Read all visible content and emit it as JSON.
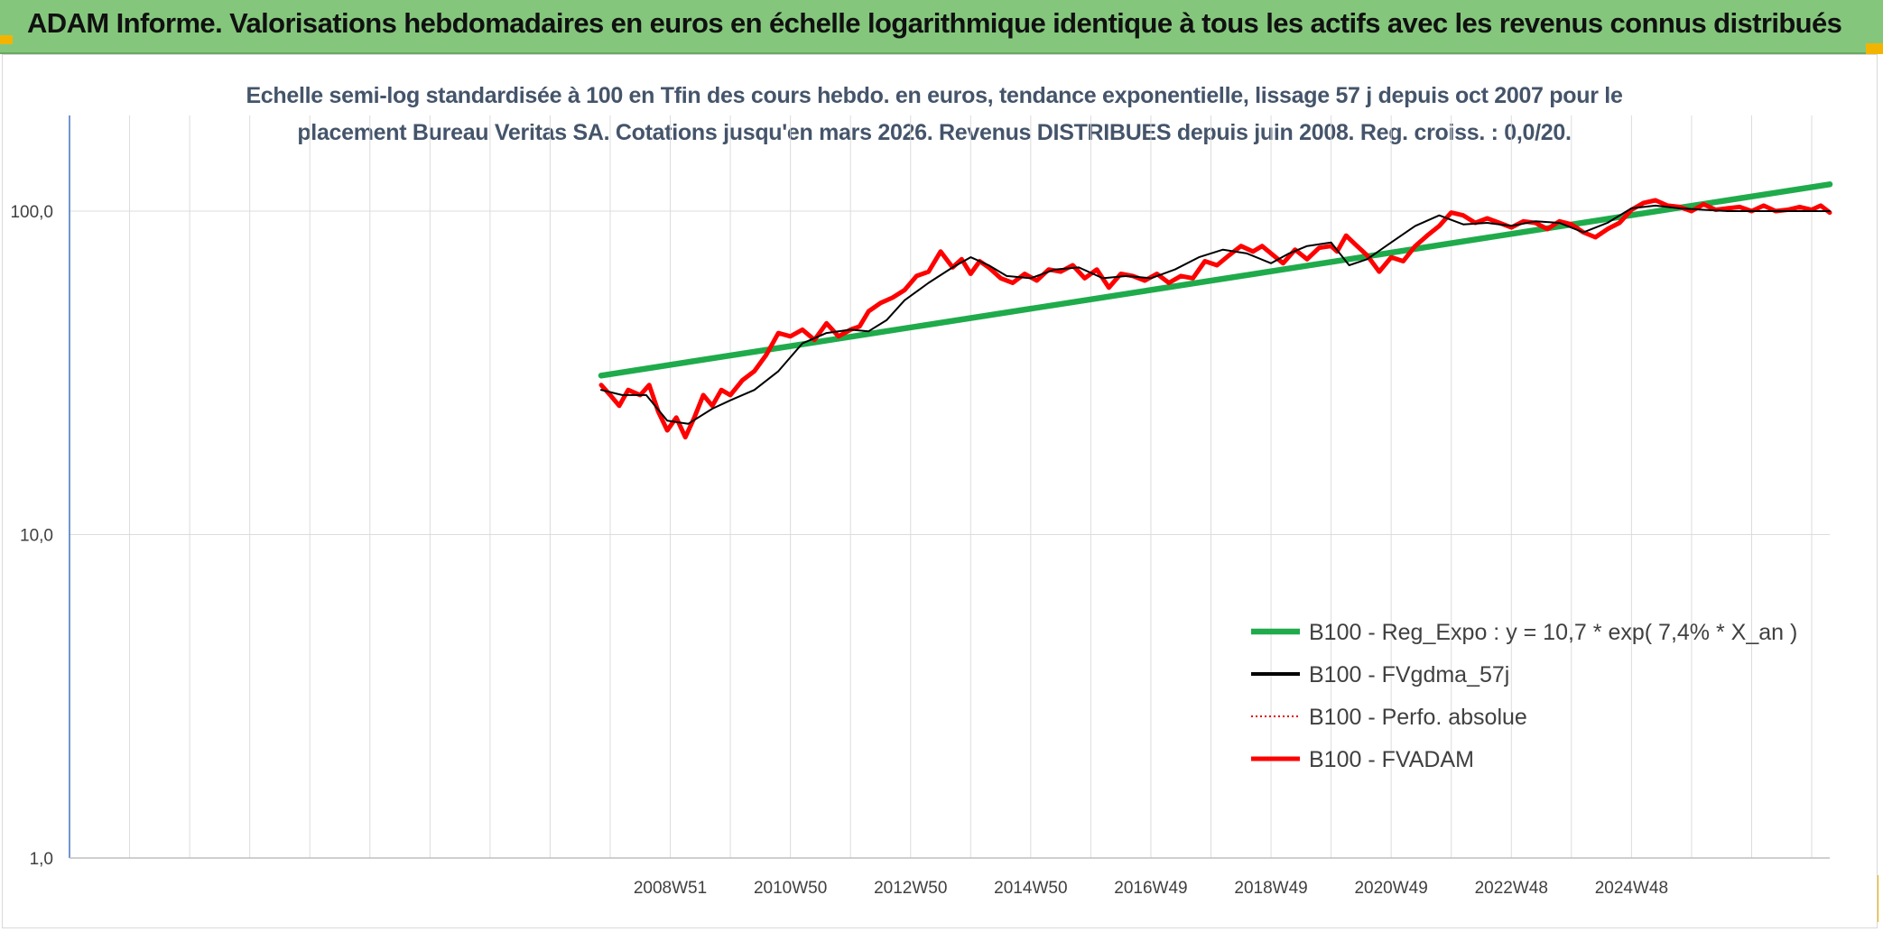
{
  "header": {
    "title": "ADAM Informe. Valorisations hebdomadaires en euros en échelle logarithmique identique à tous les actifs avec les revenus connus distribués"
  },
  "colors": {
    "header_bg": "#84c77c",
    "corner": "#f2b400",
    "reg_expo": "#1fab4b",
    "fvgdma": "#000000",
    "perfo": "#e00000",
    "fvadam": "#ff0000"
  },
  "chart_data": {
    "type": "line",
    "title_lines": [
      "Echelle semi-log standardisée à 100 en Tfin des cours hebdo. en euros, tendance exponentielle, lissage 57 j depuis oct 2007 pour le",
      "placement Bureau Veritas SA. Cotations jusqu'en mars 2026. Revenus DISTRIBUES depuis juin 2008. Reg. croiss. : 0,0/20."
    ],
    "y_scale": "log",
    "ylim": [
      1,
      200
    ],
    "y_ticks": [
      {
        "value": 1,
        "label": "1,0"
      },
      {
        "value": 10,
        "label": "10,0"
      },
      {
        "value": 100,
        "label": "100,0"
      }
    ],
    "x_range": [
      1999.0,
      2028.3
    ],
    "x_gridlines": [
      2000.0,
      2001.0,
      2002.0,
      2003.0,
      2004.0,
      2005.0,
      2006.0,
      2007.0,
      2008.0,
      2009.0,
      2010.0,
      2011.0,
      2012.0,
      2013.0,
      2014.0,
      2015.0,
      2016.0,
      2017.0,
      2018.0,
      2019.0,
      2020.0,
      2021.0,
      2022.0,
      2023.0,
      2024.0,
      2025.0,
      2026.0,
      2027.0,
      2028.0
    ],
    "x_ticks": [
      {
        "value": 2009.0,
        "label": "2008W51"
      },
      {
        "value": 2011.0,
        "label": "2010W50"
      },
      {
        "value": 2013.0,
        "label": "2012W50"
      },
      {
        "value": 2015.0,
        "label": "2014W50"
      },
      {
        "value": 2017.0,
        "label": "2016W49"
      },
      {
        "value": 2019.0,
        "label": "2018W49"
      },
      {
        "value": 2021.0,
        "label": "2020W49"
      },
      {
        "value": 2023.0,
        "label": "2022W48"
      },
      {
        "value": 2025.0,
        "label": "2024W48"
      }
    ],
    "legend_position": "bottom-right",
    "series": [
      {
        "name": "B100 - Reg_Expo : y = 10,7 * exp( 7,4% *  X_an )",
        "style": "thick-solid",
        "x": [
          2007.85,
          2028.3
        ],
        "y": [
          31,
          121
        ]
      },
      {
        "name": "B100 - FVgdma_57j",
        "style": "thin-solid",
        "x": [
          2007.85,
          2008.2,
          2008.6,
          2008.95,
          2009.3,
          2009.7,
          2010.0,
          2010.4,
          2010.8,
          2011.2,
          2011.6,
          2012.0,
          2012.3,
          2012.6,
          2012.9,
          2013.3,
          2013.7,
          2014.0,
          2014.3,
          2014.6,
          2015.0,
          2015.4,
          2015.8,
          2016.2,
          2016.6,
          2017.0,
          2017.4,
          2017.8,
          2018.2,
          2018.6,
          2019.0,
          2019.3,
          2019.6,
          2020.0,
          2020.3,
          2020.6,
          2021.0,
          2021.4,
          2021.8,
          2022.2,
          2022.6,
          2023.0,
          2023.4,
          2023.8,
          2024.2,
          2024.6,
          2025.0,
          2025.4,
          2025.8,
          2026.2,
          2026.6,
          2027.0,
          2027.4,
          2027.8,
          2028.3
        ],
        "y": [
          28,
          27,
          27,
          22.5,
          22,
          24.5,
          26,
          28,
          32,
          39,
          42,
          43,
          42.5,
          46,
          53,
          60,
          67,
          72,
          68,
          63,
          62,
          66,
          67,
          62,
          63,
          62,
          66,
          72,
          76,
          74,
          69,
          74,
          78,
          80,
          68,
          71,
          80,
          90,
          97,
          91,
          92,
          90,
          93,
          92,
          86,
          92,
          102,
          104,
          102,
          101,
          100,
          100,
          100,
          100,
          100
        ]
      },
      {
        "name": "B100 - Perfo. absolue",
        "style": "dotted",
        "x": [],
        "y": []
      },
      {
        "name": "B100 - FVADAM",
        "style": "thick-solid",
        "x": [
          2007.85,
          2008.0,
          2008.15,
          2008.3,
          2008.5,
          2008.65,
          2008.8,
          2008.95,
          2009.1,
          2009.25,
          2009.4,
          2009.55,
          2009.7,
          2009.85,
          2010.0,
          2010.2,
          2010.4,
          2010.6,
          2010.8,
          2011.0,
          2011.2,
          2011.4,
          2011.6,
          2011.8,
          2012.0,
          2012.15,
          2012.3,
          2012.5,
          2012.7,
          2012.9,
          2013.1,
          2013.3,
          2013.5,
          2013.7,
          2013.85,
          2014.0,
          2014.15,
          2014.3,
          2014.5,
          2014.7,
          2014.9,
          2015.1,
          2015.3,
          2015.5,
          2015.7,
          2015.9,
          2016.1,
          2016.3,
          2016.5,
          2016.7,
          2016.9,
          2017.1,
          2017.3,
          2017.5,
          2017.7,
          2017.9,
          2018.1,
          2018.3,
          2018.5,
          2018.7,
          2018.85,
          2019.0,
          2019.2,
          2019.4,
          2019.6,
          2019.8,
          2020.0,
          2020.1,
          2020.25,
          2020.4,
          2020.6,
          2020.8,
          2021.0,
          2021.2,
          2021.4,
          2021.6,
          2021.8,
          2022.0,
          2022.2,
          2022.4,
          2022.6,
          2022.8,
          2023.0,
          2023.2,
          2023.4,
          2023.6,
          2023.8,
          2024.0,
          2024.2,
          2024.4,
          2024.6,
          2024.8,
          2025.0,
          2025.2,
          2025.4,
          2025.6,
          2025.8,
          2026.0,
          2026.2,
          2026.4,
          2026.6,
          2026.8,
          2027.0,
          2027.2,
          2027.4,
          2027.6,
          2027.8,
          2028.0,
          2028.15,
          2028.3
        ],
        "y": [
          29,
          27,
          25,
          28,
          27,
          29,
          24,
          21,
          23,
          20,
          23,
          27,
          25,
          28,
          27,
          30,
          32,
          36,
          42,
          41,
          43,
          40,
          45,
          41,
          43,
          44,
          49,
          52,
          54,
          57,
          63,
          65,
          75,
          67,
          71,
          64,
          70,
          67,
          62,
          60,
          64,
          61,
          66,
          65,
          68,
          62,
          66,
          58,
          64,
          63,
          61,
          64,
          60,
          63,
          62,
          70,
          68,
          73,
          78,
          75,
          78,
          74,
          69,
          76,
          71,
          77,
          78,
          75,
          84,
          79,
          73,
          65,
          72,
          70,
          78,
          84,
          90,
          99,
          97,
          92,
          95,
          92,
          89,
          93,
          92,
          88,
          93,
          91,
          86,
          83,
          88,
          92,
          101,
          106,
          108,
          104,
          103,
          100,
          105,
          101,
          102,
          103,
          100,
          104,
          100,
          101,
          103,
          101,
          104,
          99
        ]
      }
    ]
  }
}
